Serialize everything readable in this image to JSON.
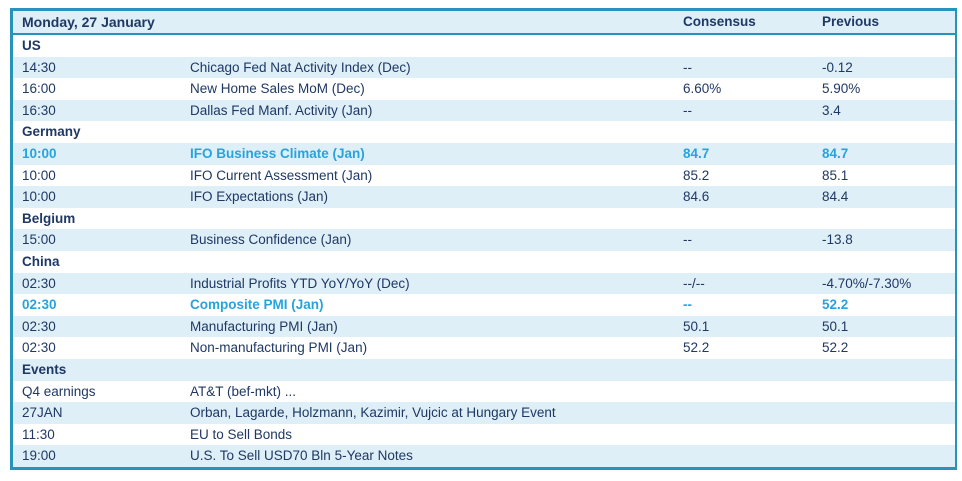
{
  "header": {
    "title": "Monday, 27 January",
    "consensus_label": "Consensus",
    "previous_label": "Previous"
  },
  "colors": {
    "navy_text": "#1F3864",
    "highlight_cyan": "#29A3DC",
    "border_teal": "#2792BA",
    "alt_row_bg": "#DEEFF7"
  },
  "sections": [
    {
      "name": "US",
      "rows": [
        {
          "time": "14:30",
          "event": "Chicago Fed Nat Activity Index (Dec)",
          "consensus": "--",
          "previous": "-0.12",
          "highlight": false
        },
        {
          "time": "16:00",
          "event": "New Home Sales MoM (Dec)",
          "consensus": "6.60%",
          "previous": "5.90%",
          "highlight": false
        },
        {
          "time": "16:30",
          "event": "Dallas Fed Manf. Activity (Jan)",
          "consensus": "--",
          "previous": "3.4",
          "highlight": false
        }
      ]
    },
    {
      "name": "Germany",
      "rows": [
        {
          "time": "10:00",
          "event": "IFO Business Climate (Jan)",
          "consensus": "84.7",
          "previous": "84.7",
          "highlight": true
        },
        {
          "time": "10:00",
          "event": "IFO Current Assessment (Jan)",
          "consensus": "85.2",
          "previous": "85.1",
          "highlight": false
        },
        {
          "time": "10:00",
          "event": "IFO Expectations (Jan)",
          "consensus": "84.6",
          "previous": "84.4",
          "highlight": false
        }
      ]
    },
    {
      "name": "Belgium",
      "rows": [
        {
          "time": "15:00",
          "event": "Business Confidence (Jan)",
          "consensus": "--",
          "previous": "-13.8",
          "highlight": false
        }
      ]
    },
    {
      "name": "China",
      "rows": [
        {
          "time": "02:30",
          "event": "Industrial Profits YTD YoY/YoY (Dec)",
          "consensus": "--/--",
          "previous": "-4.70%/-7.30%",
          "highlight": false
        },
        {
          "time": "02:30",
          "event": "Composite PMI (Jan)",
          "consensus": "--",
          "previous": "52.2",
          "highlight": true
        },
        {
          "time": "02:30",
          "event": "Manufacturing PMI (Jan)",
          "consensus": "50.1",
          "previous": "50.1",
          "highlight": false
        },
        {
          "time": "02:30",
          "event": "Non-manufacturing PMI (Jan)",
          "consensus": "52.2",
          "previous": "52.2",
          "highlight": false
        }
      ]
    },
    {
      "name": "Events",
      "rows": [
        {
          "time": "Q4 earnings",
          "event": "AT&T (bef-mkt) ...",
          "consensus": "",
          "previous": "",
          "highlight": false
        },
        {
          "time": "27JAN",
          "event": "Orban, Lagarde, Holzmann, Kazimir, Vujcic at Hungary Event",
          "consensus": "",
          "previous": "",
          "highlight": false
        },
        {
          "time": "11:30",
          "event": "EU to Sell Bonds",
          "consensus": "",
          "previous": "",
          "highlight": false
        },
        {
          "time": "19:00",
          "event": "U.S. To Sell USD70 Bln 5-Year Notes",
          "consensus": "",
          "previous": "",
          "highlight": false
        }
      ]
    }
  ]
}
